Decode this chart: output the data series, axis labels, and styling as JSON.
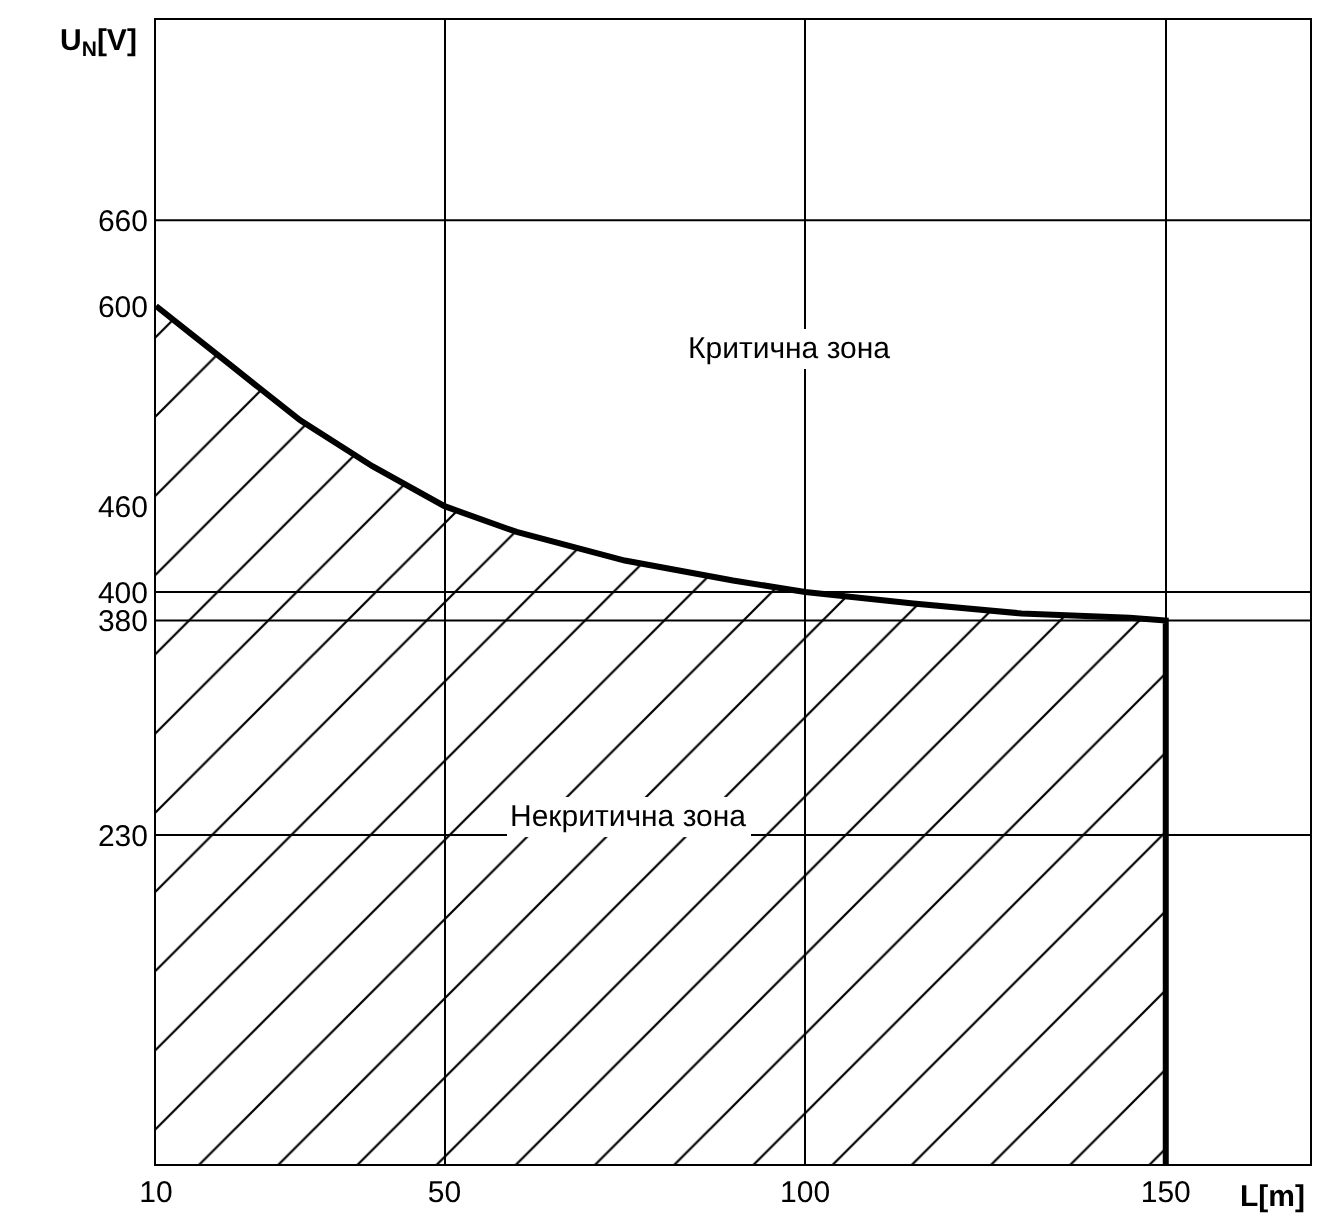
{
  "chart_data": {
    "type": "area",
    "xlabel": "L[m]",
    "ylabel": "U$_{N}$[V]",
    "annotations": [
      "Критична зона",
      "Некритична зона"
    ],
    "x": [
      10,
      15,
      20,
      30,
      40,
      50,
      60,
      75,
      90,
      100,
      115,
      130,
      145,
      150,
      150
    ],
    "series": [
      {
        "color": "#000000",
        "values": [
          600,
          580,
          560,
          520,
          488,
          460,
          442,
          422,
          408,
          400,
          392,
          385,
          382,
          380,
          0
        ]
      }
    ],
    "xlim": [
      10,
      170
    ],
    "xticks": [
      10,
      50,
      100,
      150
    ],
    "ylim": [
      0,
      800
    ],
    "yticks": [
      230,
      380,
      400,
      460,
      600,
      660
    ],
    "grid": "x",
    "marker": "none",
    "line_style": "solid",
    "ref_lines": [
      {
        "axis": "y",
        "value": 660
      },
      {
        "axis": "y",
        "value": 400
      },
      {
        "axis": "y",
        "value": 380
      },
      {
        "axis": "y",
        "value": 230
      }
    ]
  }
}
